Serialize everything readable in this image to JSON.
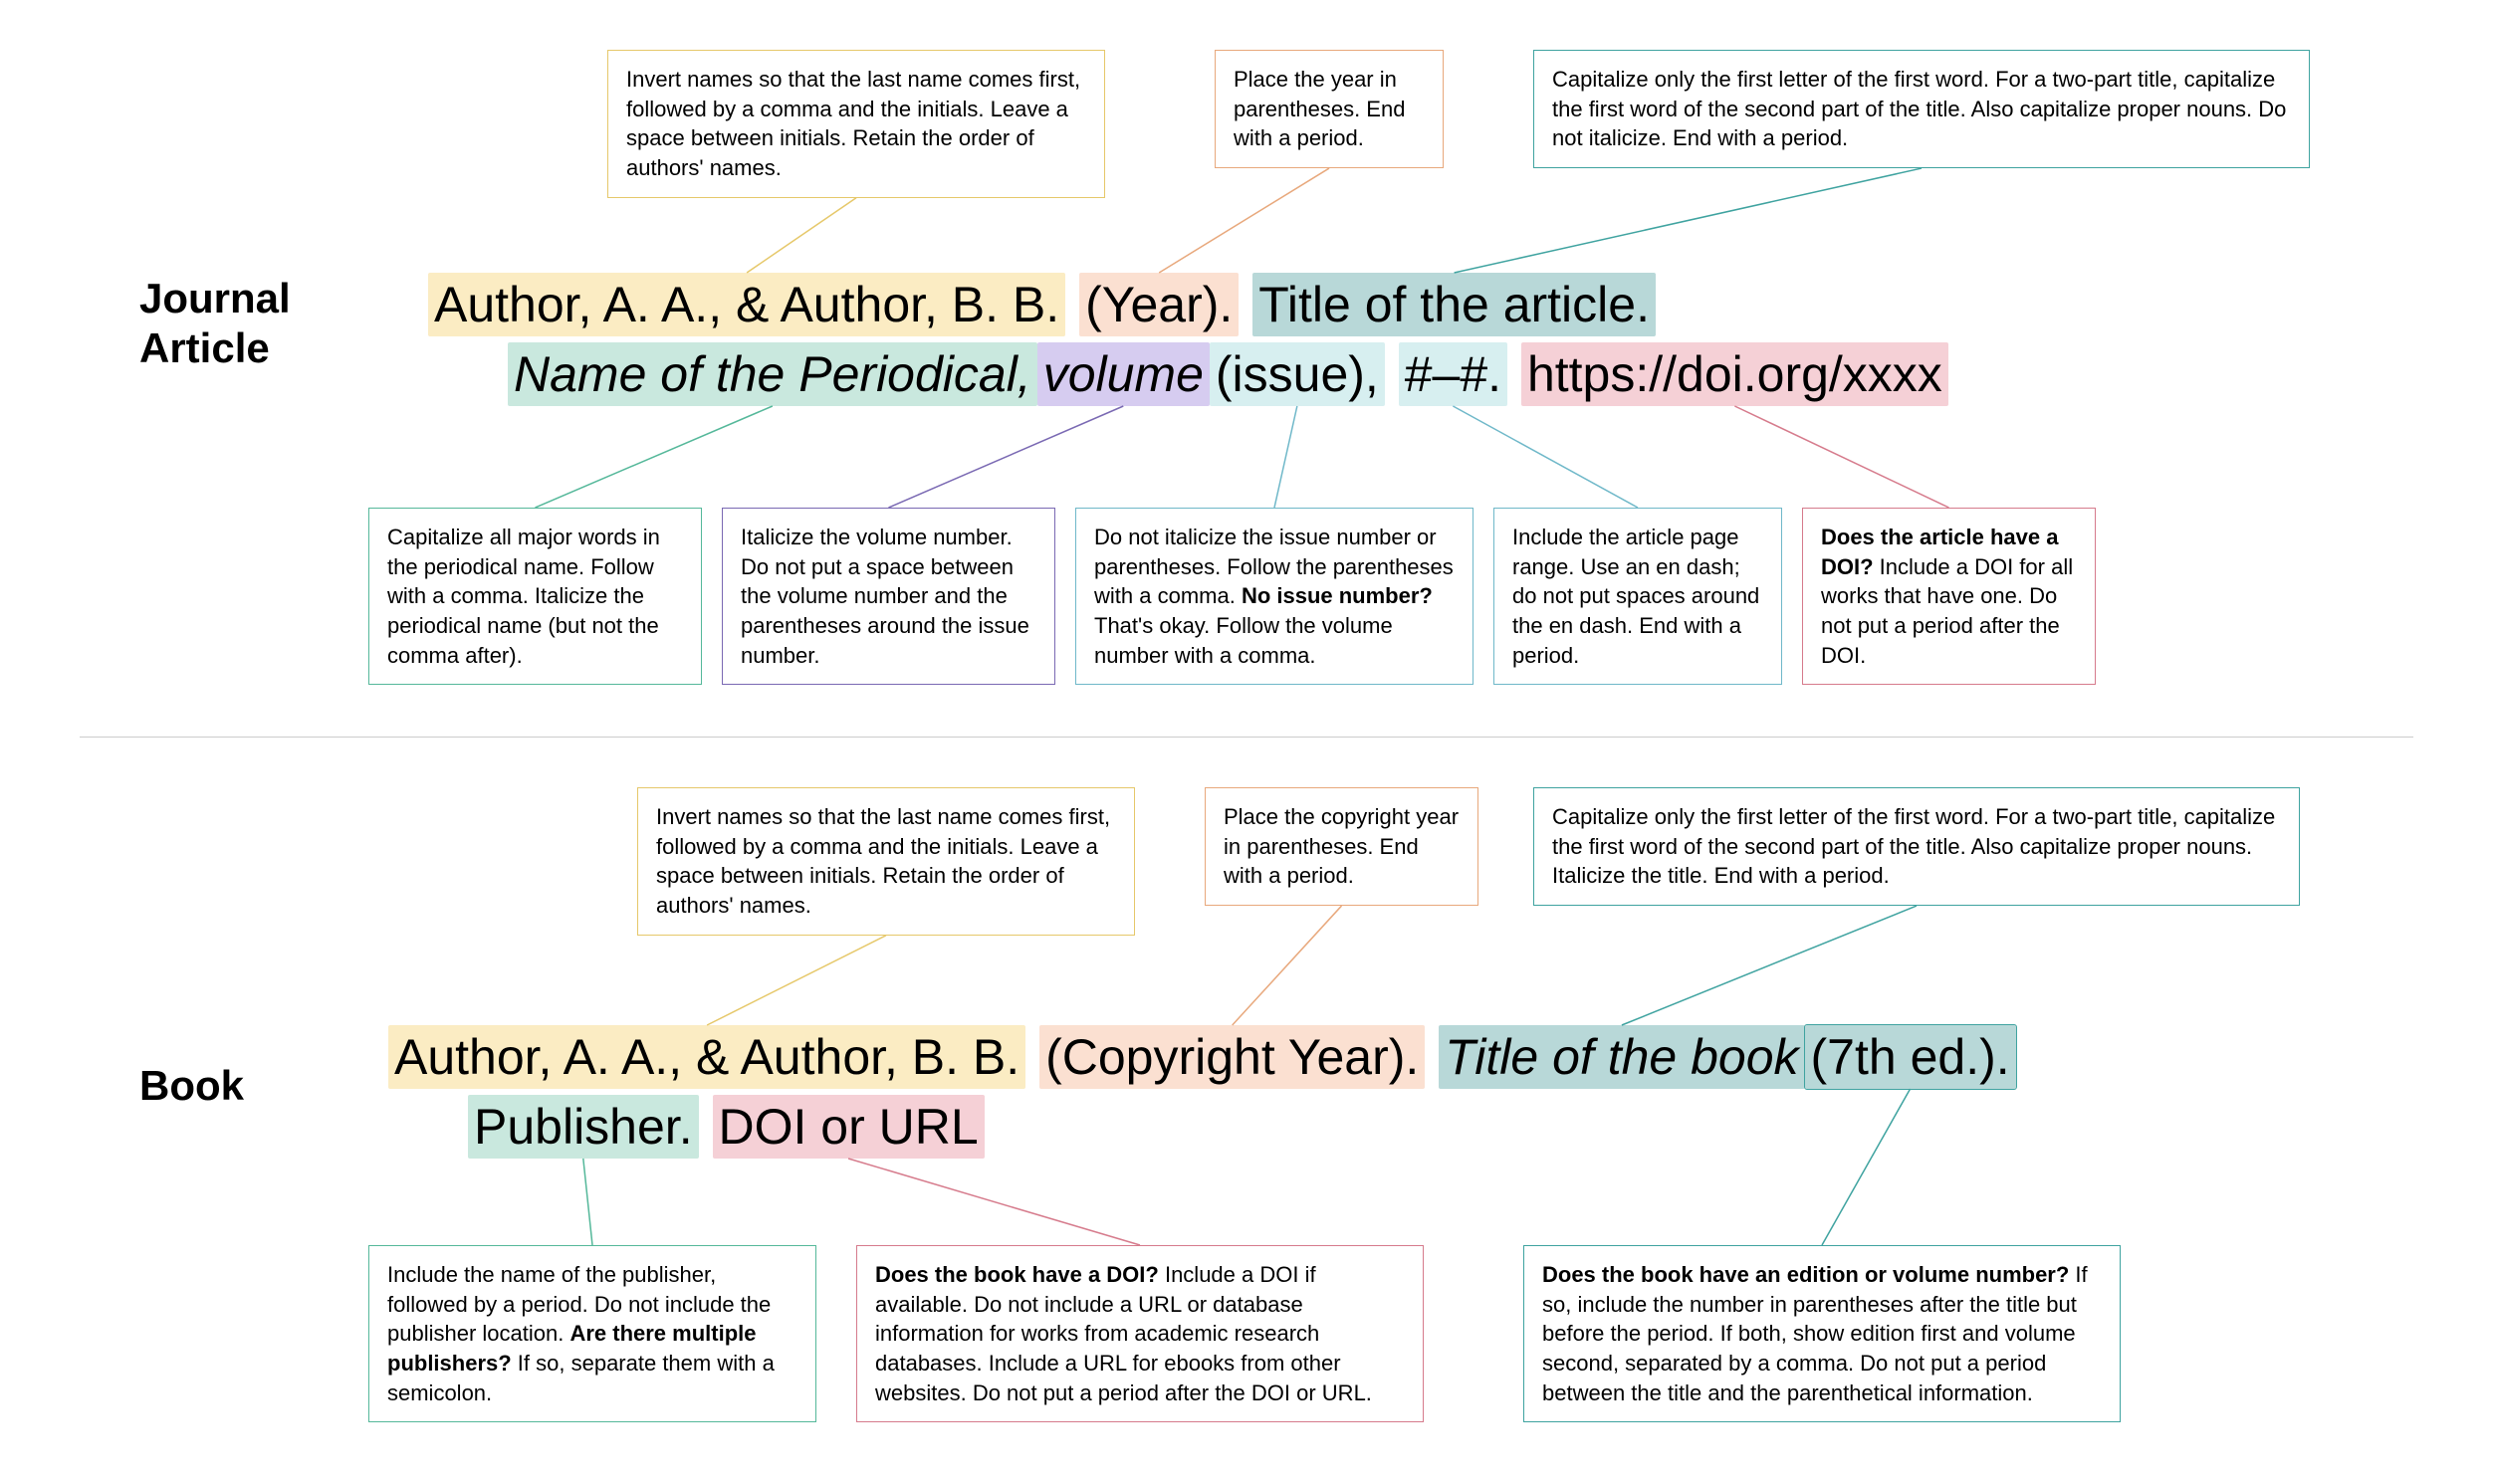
{
  "colors": {
    "yellow_hl": "#fbecc3",
    "peach_hl": "#fbe0d1",
    "teal_hl": "#b8d8d8",
    "mint_hl": "#c9e8de",
    "lilac_hl": "#d6ccf0",
    "paleblue_hl": "#d7eff0",
    "pink_hl": "#f5d0d6",
    "yellow_bd": "#e6c86a",
    "peach_bd": "#e8a87c",
    "teal_bd": "#3fa3a0",
    "mint_bd": "#55b89a",
    "lilac_bd": "#7a69b3",
    "paleblue_bd": "#6fb8c9",
    "pink_bd": "#d67b8c",
    "text": "#000000"
  },
  "journal": {
    "heading": "Journal Article",
    "segments": {
      "author": "Author, A. A., & Author, B. B.",
      "year": "(Year).",
      "title": "Title of the article.",
      "periodical": "Name of the Periodical, ",
      "volume": "volume",
      "issue": "(issue),",
      "pages": "#–#.",
      "doi": "https://doi.org/xxxx"
    },
    "notes": {
      "author": "Invert names so that the last name comes first, followed by a comma and the initials. Leave a space between initials. Retain the order of authors' names.",
      "year": "Place the year in parentheses. End with a period.",
      "title": "Capitalize only the first letter of the first word. For a two-part title, capitalize the first word of the second part of the title. Also capitalize proper nouns. Do not italicize. End with a period.",
      "periodical": "Capitalize all major words in the periodical name. Follow with a comma. Italicize the periodical name (but not the comma after).",
      "volume": "Italicize the volume number. Do not put a space between the volume number and the parentheses around the issue number.",
      "issue_a": "Do not italicize the issue number or parentheses. Follow the parentheses with a comma. ",
      "issue_b": "No issue number?",
      "issue_c": " That's okay. Follow the volume number with a comma.",
      "pages": "Include the article page range. Use an en dash; do not put spaces around the en dash. End with a period.",
      "doi_a": "Does the article have a DOI?",
      "doi_b": " Include a DOI for all works that have one. Do not put a period after the DOI."
    }
  },
  "book": {
    "heading": "Book",
    "segments": {
      "author": "Author, A. A., & Author, B. B.",
      "year": "(Copyright Year).",
      "title": "Title of the book ",
      "edition": "(7th ed.).",
      "publisher": "Publisher.",
      "doi": "DOI or URL"
    },
    "notes": {
      "author": "Invert names so that the last name comes first, followed by a comma and the initials. Leave a space between initials. Retain the order of authors' names.",
      "year": "Place the copyright year in parentheses. End with a period.",
      "title": "Capitalize only the first letter of the first word. For a two-part title, capitalize the first word of the second part of the title. Also capitalize proper nouns. Italicize the title. End with a period.",
      "publisher_a": "Include the name of the publisher, followed by a period. Do not include the publisher location. ",
      "publisher_b": "Are there multiple publishers?",
      "publisher_c": " If so, separate them with a semicolon.",
      "doi_a": "Does the book have a DOI?",
      "doi_b": " Include a DOI if available. Do not include a URL or database information for works from academic research databases. Include a URL for ebooks from other websites. Do not put a period after the DOI or URL.",
      "edition_a": "Does the book have an edition or volume number?",
      "edition_b": " If so, include the number in parentheses after the title but before the period. If both, show edition first and volume second, separated by a comma. Do not put a period between the title and the parenthetical information."
    }
  }
}
